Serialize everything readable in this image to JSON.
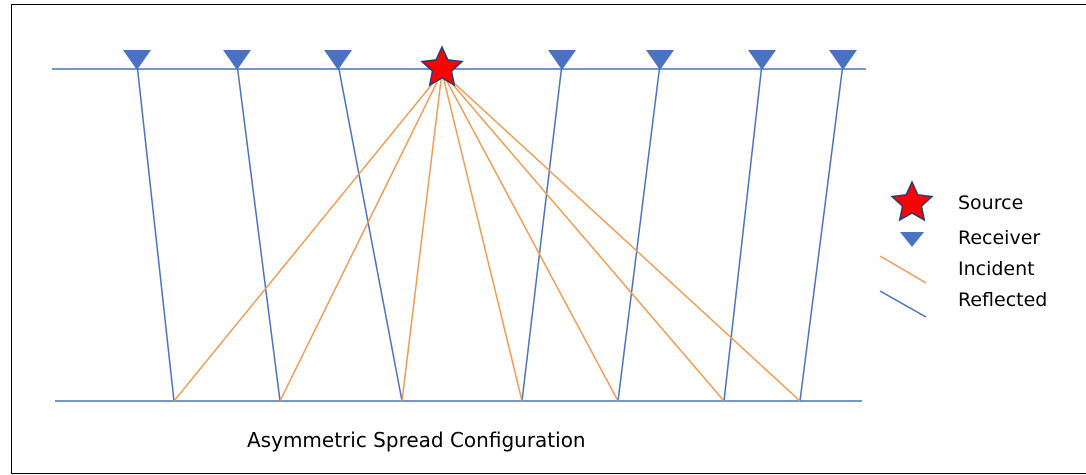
{
  "colors": {
    "surface_line": "#4a72c0",
    "reflected": "#4a72c0",
    "incident": "#f39a4e",
    "receiver_fill": "#4a72c0",
    "source_fill": "#ff0000",
    "source_stroke": "#1f3f7a"
  },
  "legend": {
    "source": "Source",
    "receiver": "Receiver",
    "incident": "Incident",
    "reflected": "Reflected"
  },
  "caption": "Asymmetric Spread Configuration",
  "icons": {
    "source": "red-star-icon",
    "receiver": "blue-triangle-icon"
  }
}
